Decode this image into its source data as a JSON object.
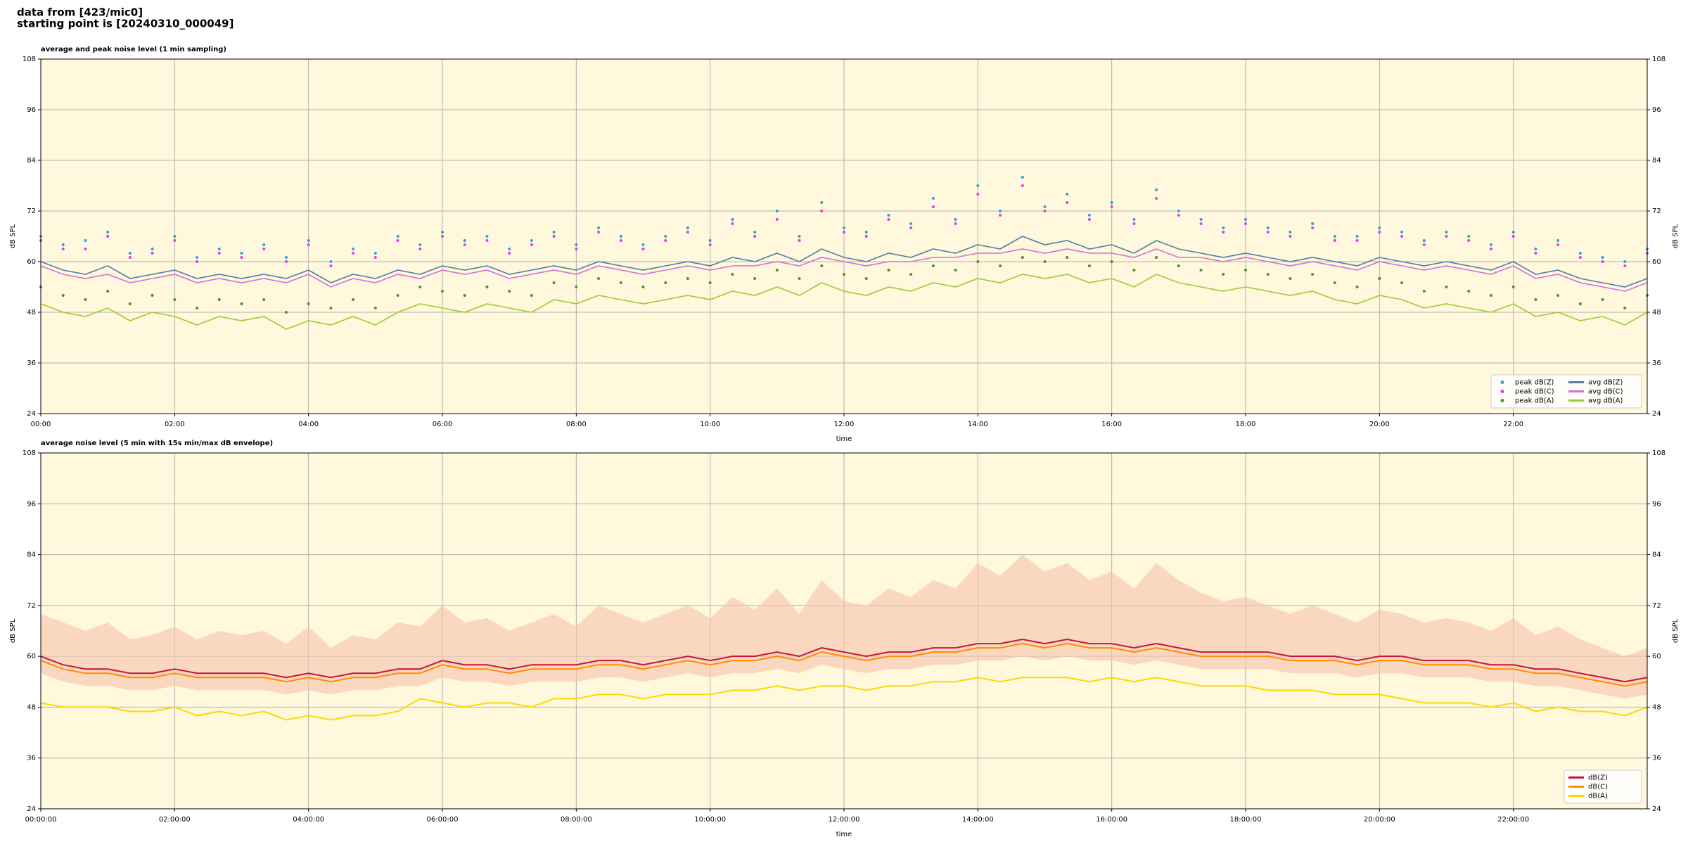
{
  "header": {
    "line1": "data from [423/mic0]",
    "line2": "starting point is [20240310_000049]"
  },
  "chart_data": [
    {
      "type": "line",
      "title": "average and peak noise level (1 min sampling)",
      "xlabel": "time",
      "ylabel": "dB SPL",
      "background": "#fff8dc",
      "grid": true,
      "legend": {
        "position": "lower right",
        "columns": 2
      },
      "xlim": [
        0,
        1440
      ],
      "ylim": [
        24,
        108
      ],
      "yticks": [
        24,
        36,
        48,
        60,
        72,
        84,
        96,
        108
      ],
      "xticks": [
        {
          "value": 0,
          "label": "00:00"
        },
        {
          "value": 120,
          "label": "02:00"
        },
        {
          "value": 240,
          "label": "04:00"
        },
        {
          "value": 360,
          "label": "06:00"
        },
        {
          "value": 480,
          "label": "08:00"
        },
        {
          "value": 600,
          "label": "10:00"
        },
        {
          "value": 720,
          "label": "12:00"
        },
        {
          "value": 840,
          "label": "14:00"
        },
        {
          "value": 960,
          "label": "16:00"
        },
        {
          "value": 1080,
          "label": "18:00"
        },
        {
          "value": 1200,
          "label": "20:00"
        },
        {
          "value": 1320,
          "label": "22:00"
        }
      ],
      "x": [
        0,
        20,
        40,
        60,
        80,
        100,
        120,
        140,
        160,
        180,
        200,
        220,
        240,
        260,
        280,
        300,
        320,
        340,
        360,
        380,
        400,
        420,
        440,
        460,
        480,
        500,
        520,
        540,
        560,
        580,
        600,
        620,
        640,
        660,
        680,
        700,
        720,
        740,
        760,
        780,
        800,
        820,
        840,
        860,
        880,
        900,
        920,
        940,
        960,
        980,
        1000,
        1020,
        1040,
        1060,
        1080,
        1100,
        1120,
        1140,
        1160,
        1180,
        1200,
        1220,
        1240,
        1260,
        1280,
        1300,
        1320,
        1340,
        1360,
        1380,
        1400,
        1420,
        1440
      ],
      "series": [
        {
          "name": "peak dB(Z)",
          "style": "scatter",
          "color": "#29a3e0",
          "values": [
            66,
            64,
            65,
            67,
            62,
            63,
            66,
            61,
            63,
            62,
            64,
            61,
            65,
            60,
            63,
            62,
            66,
            64,
            67,
            65,
            66,
            63,
            65,
            67,
            64,
            68,
            66,
            64,
            66,
            68,
            65,
            70,
            67,
            72,
            66,
            74,
            68,
            67,
            71,
            69,
            75,
            70,
            78,
            72,
            80,
            73,
            76,
            71,
            74,
            70,
            77,
            72,
            70,
            68,
            70,
            68,
            67,
            69,
            66,
            66,
            68,
            67,
            65,
            67,
            66,
            64,
            67,
            63,
            65,
            62,
            61,
            60,
            63
          ]
        },
        {
          "name": "peak dB(C)",
          "style": "scatter",
          "color": "#e23ee0",
          "values": [
            65,
            63,
            63,
            66,
            61,
            62,
            65,
            60,
            62,
            61,
            63,
            60,
            64,
            59,
            62,
            61,
            65,
            63,
            66,
            64,
            65,
            62,
            64,
            66,
            63,
            67,
            65,
            63,
            65,
            67,
            64,
            69,
            66,
            70,
            65,
            72,
            67,
            66,
            70,
            68,
            73,
            69,
            76,
            71,
            78,
            72,
            74,
            70,
            73,
            69,
            75,
            71,
            69,
            67,
            69,
            67,
            66,
            68,
            65,
            65,
            67,
            66,
            64,
            66,
            65,
            63,
            66,
            62,
            64,
            61,
            60,
            59,
            62
          ]
        },
        {
          "name": "peak dB(A)",
          "style": "scatter",
          "color": "#4f8f3a",
          "values": [
            54,
            52,
            51,
            53,
            50,
            52,
            51,
            49,
            51,
            50,
            51,
            48,
            50,
            49,
            51,
            49,
            52,
            54,
            53,
            52,
            54,
            53,
            52,
            55,
            54,
            56,
            55,
            54,
            55,
            56,
            55,
            57,
            56,
            58,
            56,
            59,
            57,
            56,
            58,
            57,
            59,
            58,
            60,
            59,
            61,
            60,
            61,
            59,
            60,
            58,
            61,
            59,
            58,
            57,
            58,
            57,
            56,
            57,
            55,
            54,
            56,
            55,
            53,
            54,
            53,
            52,
            54,
            51,
            52,
            50,
            51,
            49,
            52
          ]
        },
        {
          "name": "avg dB(Z)",
          "style": "line",
          "color": "#4f7fa8",
          "values": [
            60,
            58,
            57,
            59,
            56,
            57,
            58,
            56,
            57,
            56,
            57,
            56,
            58,
            55,
            57,
            56,
            58,
            57,
            59,
            58,
            59,
            57,
            58,
            59,
            58,
            60,
            59,
            58,
            59,
            60,
            59,
            61,
            60,
            62,
            60,
            63,
            61,
            60,
            62,
            61,
            63,
            62,
            64,
            63,
            66,
            64,
            65,
            63,
            64,
            62,
            65,
            63,
            62,
            61,
            62,
            61,
            60,
            61,
            60,
            59,
            61,
            60,
            59,
            60,
            59,
            58,
            60,
            57,
            58,
            56,
            55,
            54,
            56
          ]
        },
        {
          "name": "avg dB(C)",
          "style": "line",
          "color": "#d46fd8",
          "values": [
            59,
            57,
            56,
            57,
            55,
            56,
            57,
            55,
            56,
            55,
            56,
            55,
            57,
            54,
            56,
            55,
            57,
            56,
            58,
            57,
            58,
            56,
            57,
            58,
            57,
            59,
            58,
            57,
            58,
            59,
            58,
            59,
            59,
            60,
            59,
            61,
            60,
            59,
            60,
            60,
            61,
            61,
            62,
            62,
            63,
            62,
            63,
            62,
            62,
            61,
            63,
            61,
            61,
            60,
            61,
            60,
            59,
            60,
            59,
            58,
            60,
            59,
            58,
            59,
            58,
            57,
            59,
            56,
            57,
            55,
            54,
            53,
            55
          ]
        },
        {
          "name": "avg dB(A)",
          "style": "line",
          "color": "#9acd32",
          "values": [
            50,
            48,
            47,
            49,
            46,
            48,
            47,
            45,
            47,
            46,
            47,
            44,
            46,
            45,
            47,
            45,
            48,
            50,
            49,
            48,
            50,
            49,
            48,
            51,
            50,
            52,
            51,
            50,
            51,
            52,
            51,
            53,
            52,
            54,
            52,
            55,
            53,
            52,
            54,
            53,
            55,
            54,
            56,
            55,
            57,
            56,
            57,
            55,
            56,
            54,
            57,
            55,
            54,
            53,
            54,
            53,
            52,
            53,
            51,
            50,
            52,
            51,
            49,
            50,
            49,
            48,
            50,
            47,
            48,
            46,
            47,
            45,
            48
          ]
        }
      ]
    },
    {
      "type": "line",
      "title": "average noise level (5 min with 15s min/max dB envelope)",
      "xlabel": "time",
      "ylabel": "dB SPL",
      "background": "#fff8dc",
      "grid": true,
      "legend": {
        "position": "lower right",
        "columns": 1
      },
      "xlim": [
        0,
        1440
      ],
      "ylim": [
        24,
        108
      ],
      "yticks": [
        24,
        36,
        48,
        60,
        72,
        84,
        96,
        108
      ],
      "xticks": [
        {
          "value": 0,
          "label": "00:00:00"
        },
        {
          "value": 120,
          "label": "02:00:00"
        },
        {
          "value": 240,
          "label": "04:00:00"
        },
        {
          "value": 360,
          "label": "06:00:00"
        },
        {
          "value": 480,
          "label": "08:00:00"
        },
        {
          "value": 600,
          "label": "10:00:00"
        },
        {
          "value": 720,
          "label": "12:00:00"
        },
        {
          "value": 840,
          "label": "14:00:00"
        },
        {
          "value": 960,
          "label": "16:00:00"
        },
        {
          "value": 1080,
          "label": "18:00:00"
        },
        {
          "value": 1200,
          "label": "20:00:00"
        },
        {
          "value": 1320,
          "label": "22:00:00"
        }
      ],
      "x": [
        0,
        20,
        40,
        60,
        80,
        100,
        120,
        140,
        160,
        180,
        200,
        220,
        240,
        260,
        280,
        300,
        320,
        340,
        360,
        380,
        400,
        420,
        440,
        460,
        480,
        500,
        520,
        540,
        560,
        580,
        600,
        620,
        640,
        660,
        680,
        700,
        720,
        740,
        760,
        780,
        800,
        820,
        840,
        860,
        880,
        900,
        920,
        940,
        960,
        980,
        1000,
        1020,
        1040,
        1060,
        1080,
        1100,
        1120,
        1140,
        1160,
        1180,
        1200,
        1220,
        1240,
        1260,
        1280,
        1300,
        1320,
        1340,
        1360,
        1380,
        1400,
        1420,
        1440
      ],
      "envelope": {
        "color": "#f6c3ad",
        "high": [
          70,
          68,
          66,
          68,
          64,
          65,
          67,
          64,
          66,
          65,
          66,
          63,
          67,
          62,
          65,
          64,
          68,
          67,
          72,
          68,
          69,
          66,
          68,
          70,
          67,
          72,
          70,
          68,
          70,
          72,
          69,
          74,
          71,
          76,
          70,
          78,
          73,
          72,
          76,
          74,
          78,
          76,
          82,
          79,
          84,
          80,
          82,
          78,
          80,
          76,
          82,
          78,
          75,
          73,
          74,
          72,
          70,
          72,
          70,
          68,
          71,
          70,
          68,
          69,
          68,
          66,
          69,
          65,
          67,
          64,
          62,
          60,
          62
        ],
        "low": [
          56,
          54,
          53,
          53,
          52,
          52,
          53,
          52,
          52,
          52,
          52,
          51,
          52,
          51,
          52,
          52,
          53,
          53,
          55,
          54,
          54,
          53,
          54,
          54,
          54,
          55,
          55,
          54,
          55,
          56,
          55,
          56,
          56,
          57,
          56,
          58,
          57,
          56,
          57,
          57,
          58,
          58,
          59,
          59,
          60,
          59,
          60,
          59,
          59,
          58,
          59,
          58,
          57,
          57,
          57,
          57,
          56,
          56,
          56,
          55,
          56,
          56,
          55,
          55,
          55,
          54,
          54,
          53,
          53,
          52,
          51,
          50,
          51
        ]
      },
      "series": [
        {
          "name": "dB(Z)",
          "style": "line",
          "color": "#c8143c",
          "values": [
            60,
            58,
            57,
            57,
            56,
            56,
            57,
            56,
            56,
            56,
            56,
            55,
            56,
            55,
            56,
            56,
            57,
            57,
            59,
            58,
            58,
            57,
            58,
            58,
            58,
            59,
            59,
            58,
            59,
            60,
            59,
            60,
            60,
            61,
            60,
            62,
            61,
            60,
            61,
            61,
            62,
            62,
            63,
            63,
            64,
            63,
            64,
            63,
            63,
            62,
            63,
            62,
            61,
            61,
            61,
            61,
            60,
            60,
            60,
            59,
            60,
            60,
            59,
            59,
            59,
            58,
            58,
            57,
            57,
            56,
            55,
            54,
            55
          ]
        },
        {
          "name": "dB(C)",
          "style": "line",
          "color": "#ff8c00",
          "values": [
            59,
            57,
            56,
            56,
            55,
            55,
            56,
            55,
            55,
            55,
            55,
            54,
            55,
            54,
            55,
            55,
            56,
            56,
            58,
            57,
            57,
            56,
            57,
            57,
            57,
            58,
            58,
            57,
            58,
            59,
            58,
            59,
            59,
            60,
            59,
            61,
            60,
            59,
            60,
            60,
            61,
            61,
            62,
            62,
            63,
            62,
            63,
            62,
            62,
            61,
            62,
            61,
            60,
            60,
            60,
            60,
            59,
            59,
            59,
            58,
            59,
            59,
            58,
            58,
            58,
            57,
            57,
            56,
            56,
            55,
            54,
            53,
            54
          ]
        },
        {
          "name": "dB(A)",
          "style": "line",
          "color": "#ffd700",
          "values": [
            49,
            48,
            48,
            48,
            47,
            47,
            48,
            46,
            47,
            46,
            47,
            45,
            46,
            45,
            46,
            46,
            47,
            50,
            49,
            48,
            49,
            49,
            48,
            50,
            50,
            51,
            51,
            50,
            51,
            51,
            51,
            52,
            52,
            53,
            52,
            53,
            53,
            52,
            53,
            53,
            54,
            54,
            55,
            54,
            55,
            55,
            55,
            54,
            55,
            54,
            55,
            54,
            53,
            53,
            53,
            52,
            52,
            52,
            51,
            51,
            51,
            50,
            49,
            49,
            49,
            48,
            49,
            47,
            48,
            47,
            47,
            46,
            48
          ]
        }
      ]
    }
  ]
}
